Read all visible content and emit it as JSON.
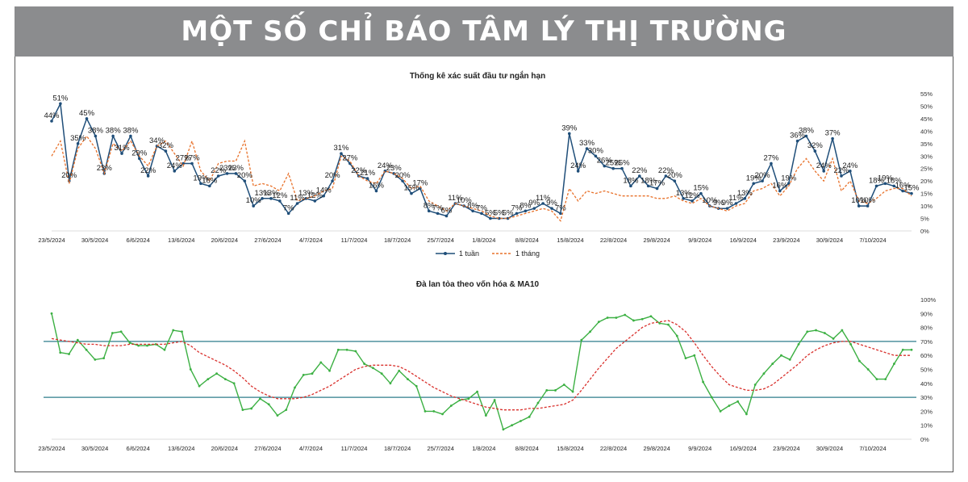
{
  "banner": {
    "title": "MỘT SỐ CHỈ BÁO TÂM LÝ THỊ TRƯỜNG"
  },
  "colors": {
    "banner_bg": "#8b8c8e",
    "weekly": "#1f4e79",
    "monthly": "#e8712a",
    "breadth": "#3cb043",
    "ma10": "#d9302c",
    "ref_lines": "#2e7d8c"
  },
  "chart_data": [
    {
      "type": "line",
      "title": "Thống kê xác suất đầu tư ngắn hạn",
      "x_ticks": [
        "23/5/2024",
        "30/5/2024",
        "6/6/2024",
        "13/6/2024",
        "20/6/2024",
        "27/6/2024",
        "4/7/2024",
        "11/7/2024",
        "18/7/2024",
        "25/7/2024",
        "1/8/2024",
        "8/8/2024",
        "15/8/2024",
        "22/8/2024",
        "29/8/2024",
        "9/9/2024",
        "16/9/2024",
        "23/9/2024",
        "30/9/2024",
        "7/10/2024"
      ],
      "y_ticks": [
        "55%",
        "50%",
        "45%",
        "40%",
        "35%",
        "30%",
        "25%",
        "20%",
        "15%",
        "10%",
        "5%",
        "0%"
      ],
      "ylim": [
        0,
        55
      ],
      "y_unit": "%",
      "legend_position": "bottom",
      "series": [
        {
          "name": "1 tuần",
          "values": [
            44,
            51,
            20,
            35,
            45,
            38,
            23,
            38,
            31,
            38,
            29,
            22,
            34,
            32,
            24,
            27,
            27,
            19,
            18,
            22,
            23,
            23,
            20,
            10,
            13,
            13,
            12,
            7,
            11,
            13,
            12,
            14,
            20,
            31,
            27,
            22,
            21,
            16,
            24,
            23,
            20,
            15,
            17,
            8,
            7,
            6,
            11,
            10,
            8,
            7,
            5,
            5,
            5,
            7,
            8,
            9,
            11,
            9,
            7,
            39,
            24,
            33,
            30,
            26,
            25,
            25,
            18,
            22,
            18,
            17,
            22,
            20,
            13,
            12,
            15,
            10,
            9,
            9,
            11,
            13,
            19,
            20,
            27,
            16,
            19,
            36,
            38,
            32,
            24,
            37,
            22,
            24,
            10,
            10,
            18,
            19,
            18,
            16,
            15
          ],
          "labels": [
            "44%",
            "51%",
            "20%",
            "35%",
            "45%",
            "38%",
            "23%",
            "38%",
            "31%",
            "38%",
            "29%",
            "22%",
            "34%",
            "32%",
            "24%",
            "27%",
            "27%",
            "19%",
            "18%",
            "22%",
            "23%",
            "23%",
            "20%",
            "10%",
            "13%",
            "13%",
            "12%",
            "7%",
            "11%",
            "13%",
            "12%",
            "14%",
            "20%",
            "31%",
            "27%",
            "22%",
            "21%",
            "16%",
            "24%",
            "23%",
            "20%",
            "15%",
            "17%",
            "8%",
            "7%",
            "6%",
            "11%",
            "10%",
            "8%",
            "7%",
            "5%",
            "5%",
            "5%",
            "7%",
            "8%",
            "9%",
            "11%",
            "9%",
            "7%",
            "39%",
            "24%",
            "33%",
            "30%",
            "26%",
            "25%",
            "25%",
            "18%",
            "22%",
            "18%",
            "17%",
            "22%",
            "20%",
            "13%",
            "12%",
            "15%",
            "10%",
            "9%",
            "9%",
            "11%",
            "13%",
            "19%",
            "20%",
            "27%",
            "16%",
            "19%",
            "36%",
            "38%",
            "32%",
            "24%",
            "37%",
            "22%",
            "24%",
            "10%",
            "10%",
            "18%",
            "19%",
            "18%",
            "16%",
            "15%"
          ]
        },
        {
          "name": "1 tháng",
          "values": [
            30,
            36,
            19,
            33,
            38,
            33,
            23,
            35,
            32,
            36,
            30,
            26,
            34,
            36,
            31,
            26,
            36,
            24,
            20,
            27,
            28,
            28,
            36,
            18,
            19,
            18,
            16,
            23,
            12,
            13,
            14,
            16,
            17,
            30,
            28,
            22,
            20,
            19,
            24,
            23,
            21,
            17,
            18,
            12,
            10,
            8,
            11,
            10,
            9,
            8,
            6,
            5,
            5,
            6,
            7,
            8,
            9,
            8,
            4,
            17,
            12,
            16,
            15,
            16,
            15,
            14,
            14,
            14,
            14,
            13,
            13,
            14,
            12,
            11,
            13,
            10,
            9,
            8,
            10,
            11,
            16,
            17,
            19,
            14,
            18,
            25,
            29,
            24,
            20,
            29,
            16,
            20,
            12,
            11,
            13,
            16,
            17,
            17,
            14
          ]
        }
      ]
    },
    {
      "type": "line",
      "title": "Đà lan tỏa theo vốn hóa & MA10",
      "x_ticks": [
        "23/5/2024",
        "30/5/2024",
        "6/6/2024",
        "13/6/2024",
        "20/6/2024",
        "27/6/2024",
        "4/7/2024",
        "11/7/2024",
        "18/7/2024",
        "25/7/2024",
        "1/8/2024",
        "8/8/2024",
        "15/8/2024",
        "22/8/2024",
        "29/8/2024",
        "9/9/2024",
        "16/9/2024",
        "23/9/2024",
        "30/9/2024",
        "7/10/2024"
      ],
      "y_ticks": [
        "100%",
        "90%",
        "80%",
        "70%",
        "60%",
        "50%",
        "40%",
        "30%",
        "20%",
        "10%",
        "0%"
      ],
      "ylim": [
        0,
        100
      ],
      "y_unit": "%",
      "reference_lines": [
        70,
        30
      ],
      "series": [
        {
          "values": [
            90,
            62,
            61,
            71,
            64,
            57,
            58,
            76,
            77,
            69,
            67,
            67,
            68,
            64,
            78,
            77,
            50,
            38,
            43,
            47,
            43,
            40,
            21,
            22,
            29,
            25,
            17,
            21,
            37,
            46,
            47,
            55,
            49,
            64,
            64,
            63,
            54,
            51,
            47,
            40,
            49,
            43,
            38,
            20,
            20,
            18,
            24,
            28,
            29,
            34,
            17,
            28,
            7,
            10,
            13,
            16,
            26,
            35,
            35,
            39,
            34,
            71,
            77,
            84,
            87,
            87,
            89,
            85,
            86,
            88,
            83,
            82,
            74,
            58,
            60,
            41,
            30,
            20,
            24,
            27,
            18,
            39,
            47,
            54,
            60,
            57,
            68,
            77,
            78,
            76,
            72,
            78,
            68,
            56,
            50,
            43,
            43,
            54,
            64,
            64
          ],
          "color": "#3cb043"
        },
        {
          "values": [
            72,
            71,
            70,
            69,
            68,
            68,
            67,
            67,
            67,
            68,
            68,
            68,
            68,
            68,
            69,
            70,
            67,
            62,
            59,
            56,
            53,
            49,
            44,
            38,
            34,
            31,
            29,
            29,
            29,
            30,
            32,
            35,
            38,
            42,
            46,
            50,
            52,
            53,
            53,
            53,
            52,
            49,
            45,
            41,
            37,
            34,
            31,
            29,
            27,
            25,
            23,
            22,
            21,
            21,
            21,
            22,
            22,
            23,
            24,
            25,
            28,
            35,
            43,
            51,
            58,
            65,
            70,
            75,
            80,
            83,
            84,
            85,
            82,
            77,
            69,
            60,
            52,
            45,
            39,
            37,
            35,
            35,
            36,
            39,
            44,
            49,
            54,
            60,
            64,
            67,
            69,
            70,
            70,
            68,
            66,
            64,
            62,
            60,
            60,
            60
          ]
        }
      ]
    }
  ]
}
